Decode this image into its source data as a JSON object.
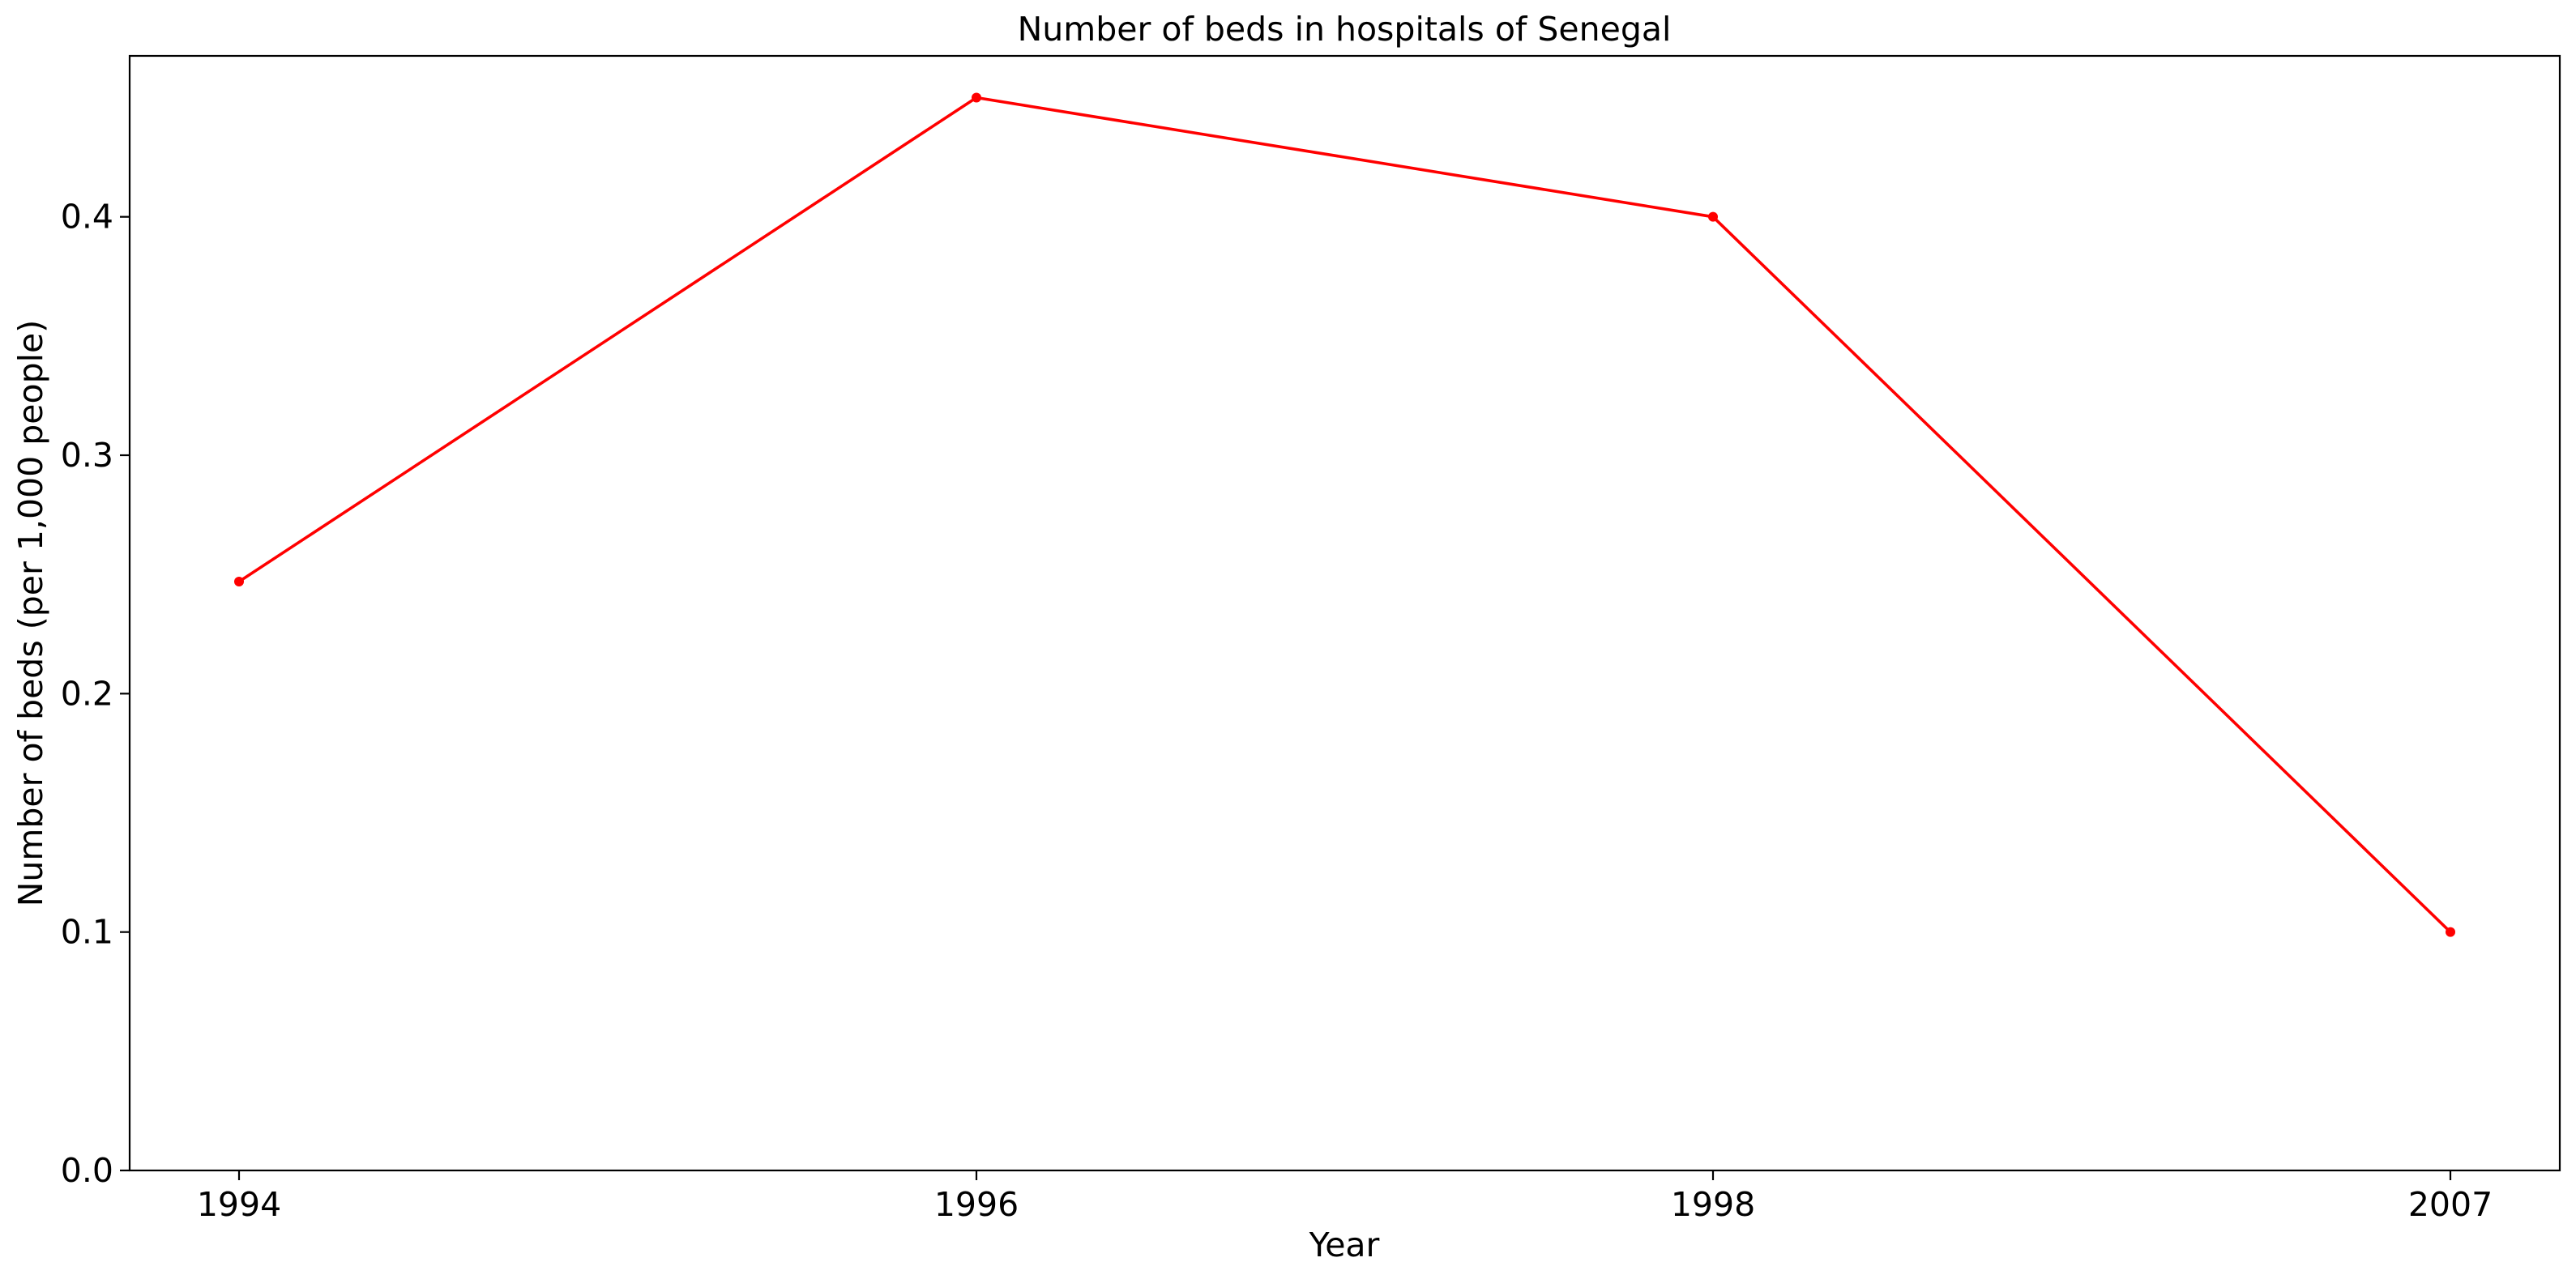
{
  "chart_data": {
    "type": "line",
    "title": "Number of beds in hospitals of Senegal",
    "xlabel": "Year",
    "ylabel": "Number of beds (per 1,000 people)",
    "categories": [
      "1994",
      "1996",
      "1998",
      "2007"
    ],
    "series": [
      {
        "values": [
          0.247,
          0.45,
          0.4,
          0.1
        ],
        "color": "#ff0000"
      }
    ],
    "ylim": [
      0,
      0.4675
    ],
    "yticks": [
      0.0,
      0.1,
      0.2,
      0.3,
      0.4
    ],
    "ytick_labels": [
      "0.0",
      "0.1",
      "0.2",
      "0.3",
      "0.4"
    ],
    "grid": false,
    "legend": "none"
  }
}
